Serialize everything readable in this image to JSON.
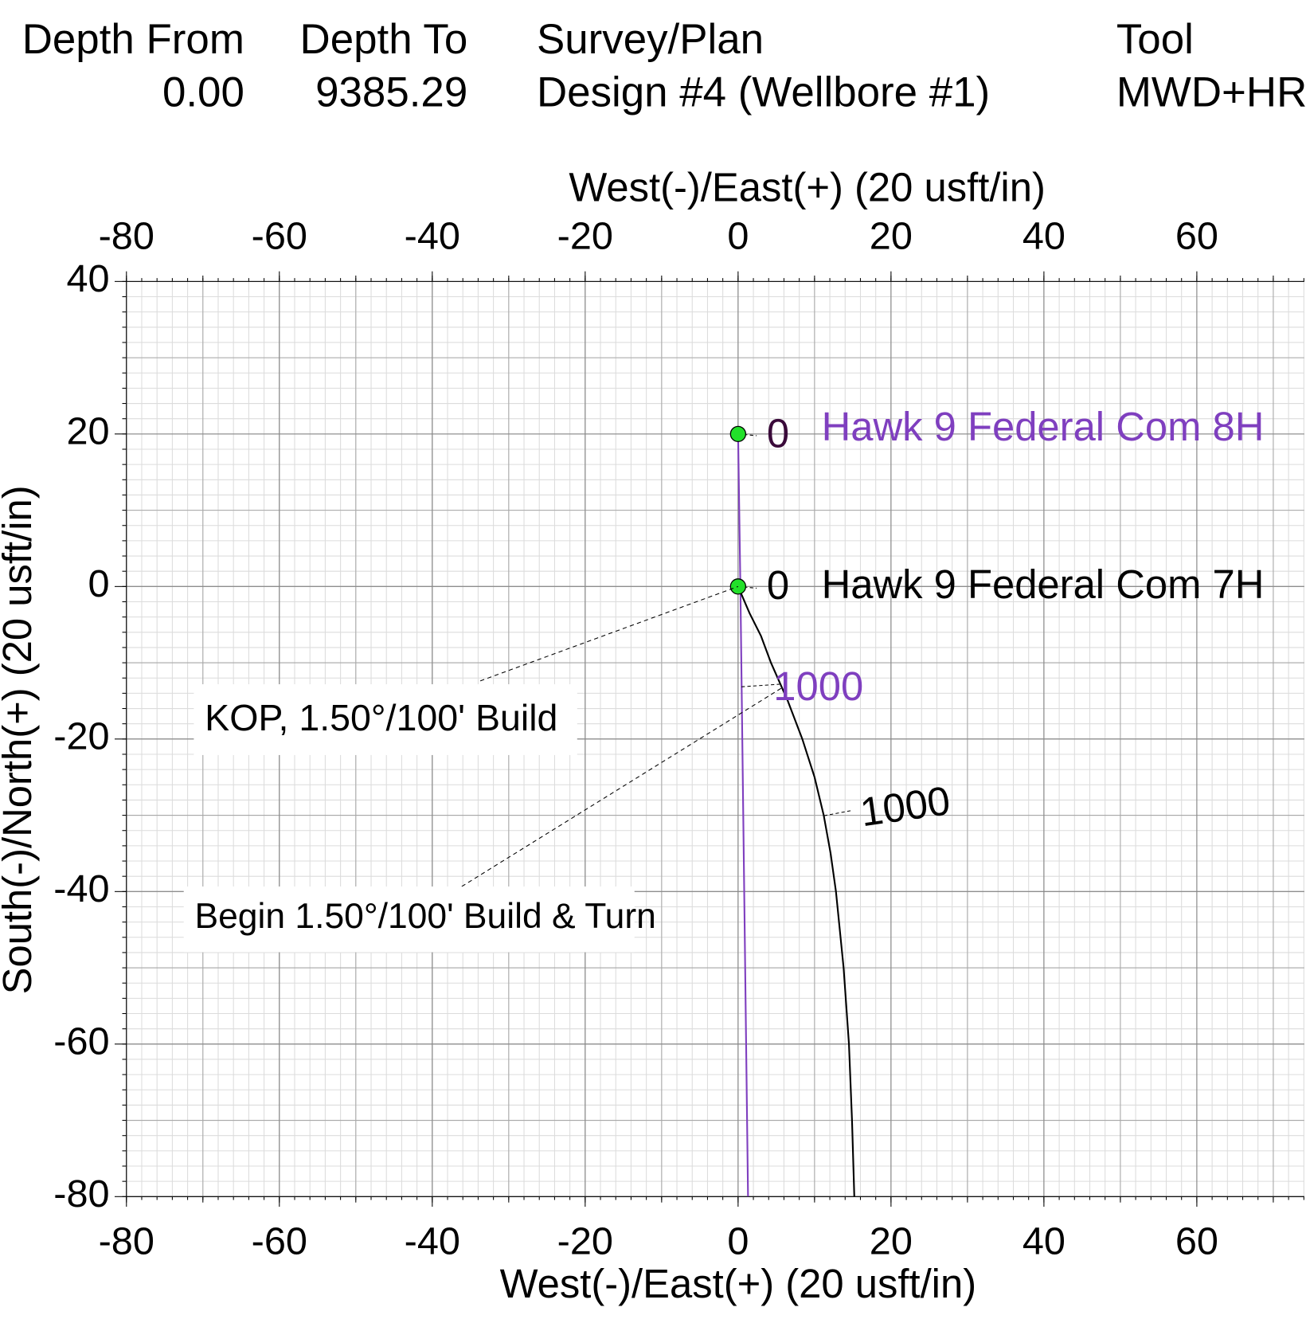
{
  "header": {
    "columns": [
      {
        "title": "Depth From",
        "value": "0.00"
      },
      {
        "title": "Depth To",
        "value": "9385.29"
      },
      {
        "title": "Survey/Plan",
        "value": "Design #4 (Wellbore #1)"
      },
      {
        "title": "Tool",
        "value": "MWD+HR"
      }
    ]
  },
  "chart_data": {
    "type": "line",
    "xlabel": "West(-)/East(+) (20 usft/in)",
    "ylabel": "South(-)/North(+) (20 usft/in)",
    "xlim": [
      -80,
      74
    ],
    "ylim": [
      -80,
      40
    ],
    "xticks": [
      -80,
      -60,
      -40,
      -20,
      0,
      20,
      40,
      60
    ],
    "yticks": [
      -80,
      -60,
      -40,
      -20,
      0,
      20,
      40
    ],
    "grid": true,
    "series": [
      {
        "name": "Hawk 9 Federal Com 8H",
        "color": "#7f3fbf",
        "x": [
          0,
          0.3,
          1.3
        ],
        "y": [
          20,
          0,
          -80
        ],
        "md_markers": [
          0,
          1000
        ]
      },
      {
        "name": "Hawk 9 Federal Com 7H",
        "color": "#000000",
        "x": [
          0,
          1.5,
          3,
          4.3,
          6.5,
          8.4,
          10,
          11.2,
          12.1,
          12.8,
          13.8,
          14.5,
          14.9,
          15.2
        ],
        "y": [
          0,
          -3.5,
          -6.5,
          -10,
          -15,
          -20,
          -25,
          -30,
          -35,
          -40,
          -50,
          -60,
          -70,
          -80
        ],
        "md_markers": [
          0,
          1000
        ]
      }
    ],
    "annotations": [
      "KOP, 1.50°/100' Build",
      "Begin 1.50°/100' Build & Turn"
    ]
  }
}
